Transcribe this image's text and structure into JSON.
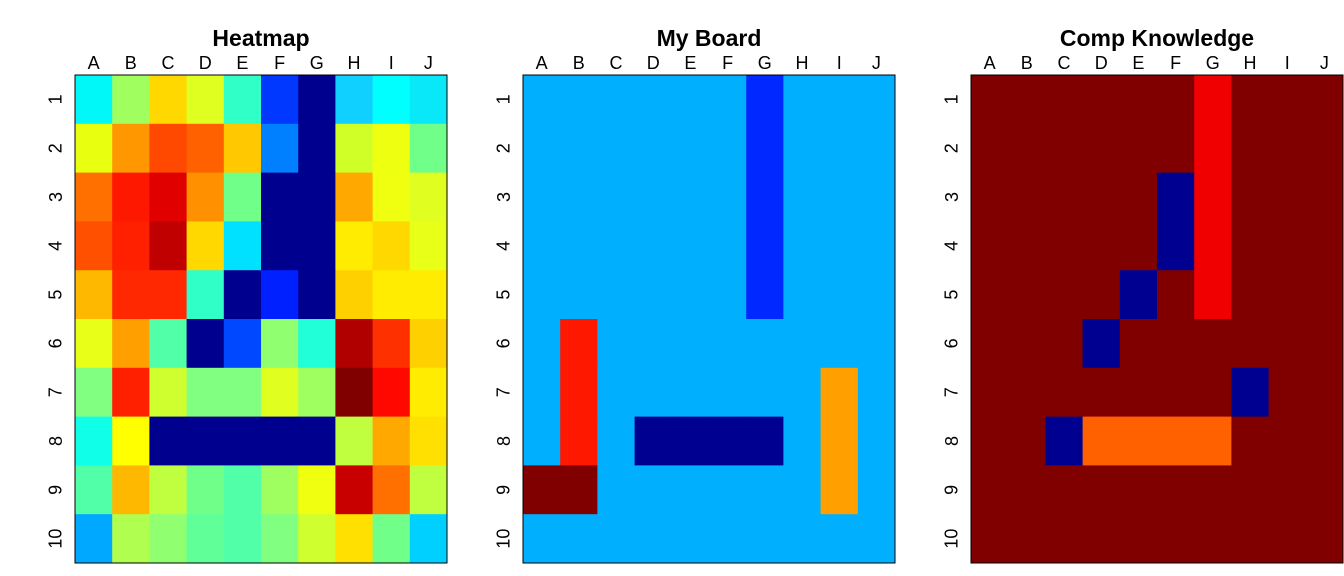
{
  "boards": [
    {
      "title": "Heatmap",
      "columns": [
        "A",
        "B",
        "C",
        "D",
        "E",
        "F",
        "G",
        "H",
        "I",
        "J"
      ],
      "rows": [
        "1",
        "2",
        "3",
        "4",
        "5",
        "6",
        "7",
        "8",
        "9",
        "10"
      ],
      "cells": [
        [
          "#00F8F8",
          "#A0FF5F",
          "#FFD800",
          "#DFFF20",
          "#30FFC8",
          "#0038FF",
          "#00008F",
          "#10D0FF",
          "#00FFFF",
          "#08E8F8"
        ],
        [
          "#E8FF10",
          "#FF9800",
          "#FF4800",
          "#FF6000",
          "#FFC800",
          "#0080FF",
          "#00008F",
          "#D0FF28",
          "#EFFF10",
          "#70FF88"
        ],
        [
          "#FF7000",
          "#FF1800",
          "#E00000",
          "#FF9000",
          "#70FF88",
          "#00008F",
          "#00008F",
          "#FFA800",
          "#F0FF0F",
          "#E0FF20"
        ],
        [
          "#FF5000",
          "#FF2000",
          "#C00000",
          "#FFD800",
          "#00E0FF",
          "#00008F",
          "#00008F",
          "#FFEC00",
          "#FFD800",
          "#E8FF18"
        ],
        [
          "#FFB800",
          "#FF2800",
          "#FF2800",
          "#30FFC8",
          "#00008F",
          "#0020FF",
          "#00008F",
          "#FFD000",
          "#FFEC00",
          "#FFEC00"
        ],
        [
          "#E8FF18",
          "#FFA000",
          "#50FFA8",
          "#00008F",
          "#0048FF",
          "#90FF70",
          "#20FFD8",
          "#B00000",
          "#FF3000",
          "#FFD000"
        ],
        [
          "#80FF80",
          "#FF2000",
          "#D0FF30",
          "#80FF80",
          "#80FF80",
          "#E0FF20",
          "#A0FF60",
          "#800000",
          "#FF0800",
          "#FFEC00"
        ],
        [
          "#10FFE8",
          "#FFFF00",
          "#00008F",
          "#00008F",
          "#00008F",
          "#00008F",
          "#00008F",
          "#C0FF40",
          "#FFA800",
          "#FFE000"
        ],
        [
          "#50FFA8",
          "#FFB800",
          "#C0FF40",
          "#70FF88",
          "#50FFA8",
          "#A0FF60",
          "#F0FF0F",
          "#C80000",
          "#FF7000",
          "#C0FF40"
        ],
        [
          "#00A8FF",
          "#B0FF50",
          "#90FF70",
          "#60FF98",
          "#50FFA8",
          "#80FF80",
          "#D0FF30",
          "#FFE000",
          "#70FF88",
          "#00D0FF"
        ]
      ]
    },
    {
      "title": "My Board",
      "columns": [
        "A",
        "B",
        "C",
        "D",
        "E",
        "F",
        "G",
        "H",
        "I",
        "J"
      ],
      "rows": [
        "1",
        "2",
        "3",
        "4",
        "5",
        "6",
        "7",
        "8",
        "9",
        "10"
      ],
      "cells": [
        [
          "#00B0FF",
          "#00B0FF",
          "#00B0FF",
          "#00B0FF",
          "#00B0FF",
          "#00B0FF",
          "#0028FF",
          "#00B0FF",
          "#00B0FF",
          "#00B0FF"
        ],
        [
          "#00B0FF",
          "#00B0FF",
          "#00B0FF",
          "#00B0FF",
          "#00B0FF",
          "#00B0FF",
          "#0028FF",
          "#00B0FF",
          "#00B0FF",
          "#00B0FF"
        ],
        [
          "#00B0FF",
          "#00B0FF",
          "#00B0FF",
          "#00B0FF",
          "#00B0FF",
          "#00B0FF",
          "#0028FF",
          "#00B0FF",
          "#00B0FF",
          "#00B0FF"
        ],
        [
          "#00B0FF",
          "#00B0FF",
          "#00B0FF",
          "#00B0FF",
          "#00B0FF",
          "#00B0FF",
          "#0028FF",
          "#00B0FF",
          "#00B0FF",
          "#00B0FF"
        ],
        [
          "#00B0FF",
          "#00B0FF",
          "#00B0FF",
          "#00B0FF",
          "#00B0FF",
          "#00B0FF",
          "#0028FF",
          "#00B0FF",
          "#00B0FF",
          "#00B0FF"
        ],
        [
          "#00B0FF",
          "#FF1800",
          "#00B0FF",
          "#00B0FF",
          "#00B0FF",
          "#00B0FF",
          "#00B0FF",
          "#00B0FF",
          "#00B0FF",
          "#00B0FF"
        ],
        [
          "#00B0FF",
          "#FF1800",
          "#00B0FF",
          "#00B0FF",
          "#00B0FF",
          "#00B0FF",
          "#00B0FF",
          "#00B0FF",
          "#FFA000",
          "#00B0FF"
        ],
        [
          "#00B0FF",
          "#FF1800",
          "#00B0FF",
          "#000090",
          "#000090",
          "#000090",
          "#000090",
          "#00B0FF",
          "#FFA000",
          "#00B0FF"
        ],
        [
          "#800000",
          "#800000",
          "#00B0FF",
          "#00B0FF",
          "#00B0FF",
          "#00B0FF",
          "#00B0FF",
          "#00B0FF",
          "#FFA000",
          "#00B0FF"
        ],
        [
          "#00B0FF",
          "#00B0FF",
          "#00B0FF",
          "#00B0FF",
          "#00B0FF",
          "#00B0FF",
          "#00B0FF",
          "#00B0FF",
          "#00B0FF",
          "#00B0FF"
        ]
      ]
    },
    {
      "title": "Comp Knowledge",
      "columns": [
        "A",
        "B",
        "C",
        "D",
        "E",
        "F",
        "G",
        "H",
        "I",
        "J"
      ],
      "rows": [
        "1",
        "2",
        "3",
        "4",
        "5",
        "6",
        "7",
        "8",
        "9",
        "10"
      ],
      "cells": [
        [
          "#800000",
          "#800000",
          "#800000",
          "#800000",
          "#800000",
          "#800000",
          "#F00000",
          "#800000",
          "#800000",
          "#800000"
        ],
        [
          "#800000",
          "#800000",
          "#800000",
          "#800000",
          "#800000",
          "#800000",
          "#F00000",
          "#800000",
          "#800000",
          "#800000"
        ],
        [
          "#800000",
          "#800000",
          "#800000",
          "#800000",
          "#800000",
          "#000090",
          "#F00000",
          "#800000",
          "#800000",
          "#800000"
        ],
        [
          "#800000",
          "#800000",
          "#800000",
          "#800000",
          "#800000",
          "#000090",
          "#F00000",
          "#800000",
          "#800000",
          "#800000"
        ],
        [
          "#800000",
          "#800000",
          "#800000",
          "#800000",
          "#000090",
          "#800000",
          "#F00000",
          "#800000",
          "#800000",
          "#800000"
        ],
        [
          "#800000",
          "#800000",
          "#800000",
          "#000090",
          "#800000",
          "#800000",
          "#800000",
          "#800000",
          "#800000",
          "#800000"
        ],
        [
          "#800000",
          "#800000",
          "#800000",
          "#800000",
          "#800000",
          "#800000",
          "#800000",
          "#000090",
          "#800000",
          "#800000"
        ],
        [
          "#800000",
          "#800000",
          "#000090",
          "#FF6000",
          "#FF6000",
          "#FF6000",
          "#FF6000",
          "#800000",
          "#800000",
          "#800000"
        ],
        [
          "#800000",
          "#800000",
          "#800000",
          "#800000",
          "#800000",
          "#800000",
          "#800000",
          "#800000",
          "#800000",
          "#800000"
        ],
        [
          "#800000",
          "#800000",
          "#800000",
          "#800000",
          "#800000",
          "#800000",
          "#800000",
          "#800000",
          "#800000",
          "#800000"
        ]
      ]
    }
  ]
}
